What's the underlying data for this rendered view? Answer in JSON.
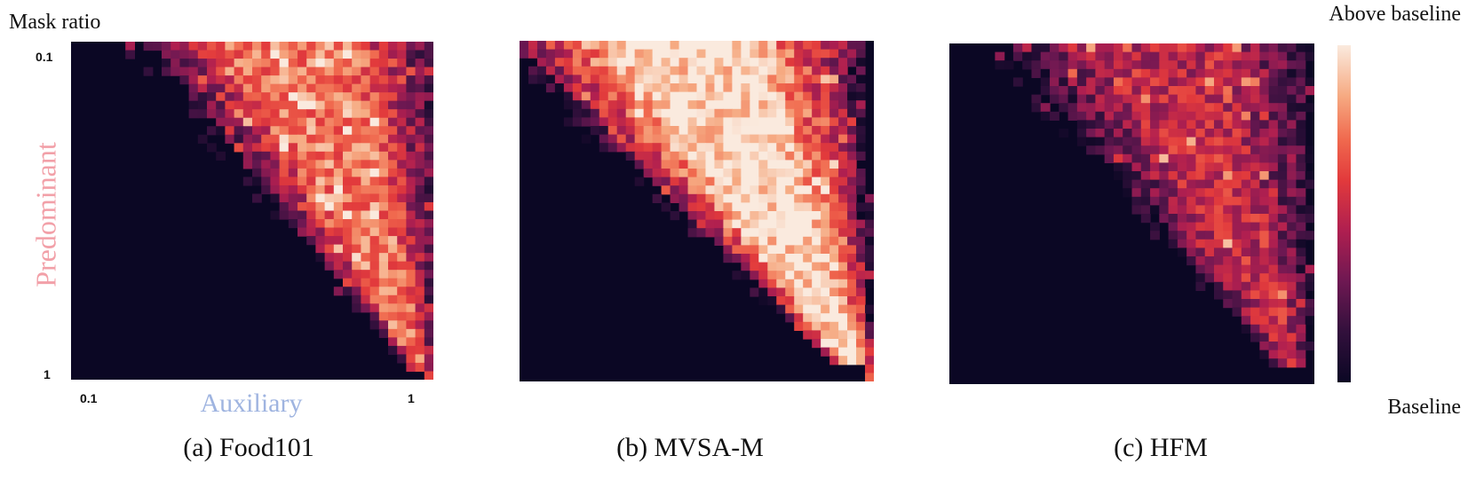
{
  "chart_data": [
    {
      "type": "heatmap",
      "panel": "a",
      "title": "(a) Food101",
      "xlabel": "Auxiliary",
      "ylabel": "Predominant",
      "x_ticks": [
        "0.1",
        "1"
      ],
      "y_ticks": [
        "0.1",
        "1"
      ],
      "xlim": [
        0.1,
        1
      ],
      "ylim": [
        0.1,
        1
      ],
      "grid_size": 40,
      "active_region": {
        "left_edge_top": 0.22,
        "left_edge_bottom": 0.95,
        "right_edge": 1.0,
        "bottom_cutoff": 0.98
      },
      "value_scale": {
        "fringe": 0.2,
        "core": 0.75
      },
      "seed": 7
    },
    {
      "type": "heatmap",
      "panel": "b",
      "title": "(b) MVSA-M",
      "grid_size": 40,
      "active_region": {
        "left_edge_top": 0.0,
        "left_edge_bottom": 0.93,
        "right_edge_top": 0.92,
        "right_edge_bottom": 1.0,
        "bottom_cutoff": 0.97
      },
      "value_scale": {
        "fringe": 0.35,
        "core": 0.97
      },
      "seed": 13
    },
    {
      "type": "heatmap",
      "panel": "c",
      "title": "(c) HFM",
      "grid_size": 40,
      "active_region": {
        "left_edge_top": 0.18,
        "left_edge_bottom": 0.93,
        "right_edge": 0.98,
        "bottom_cutoff": 0.97
      },
      "value_scale": {
        "fringe": 0.15,
        "core": 0.5
      },
      "seed": 29
    }
  ],
  "figure": {
    "y_axis_title": "Mask ratio",
    "colorbar": {
      "top_label": "Above baseline",
      "bottom_label": "Baseline",
      "colormap": "rocket"
    }
  }
}
